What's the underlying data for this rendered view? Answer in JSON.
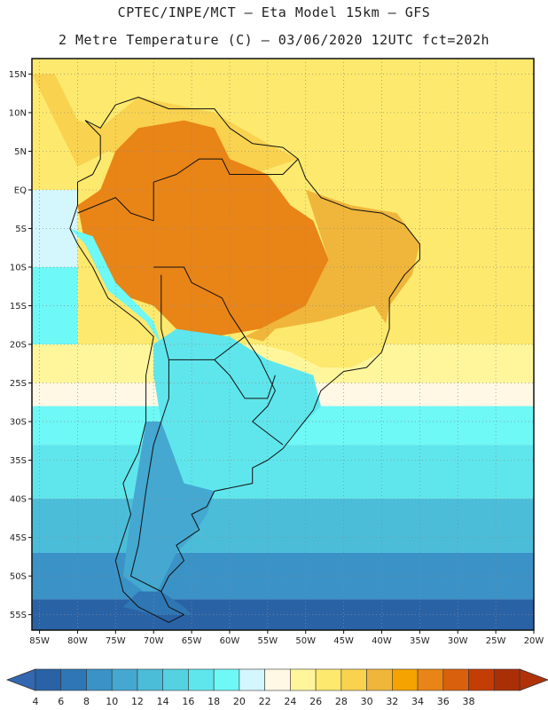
{
  "title": {
    "line1": "CPTEC/INPE/MCT –  Eta Model 15km – GFS",
    "line2": "2 Metre Temperature (C) – 03/06/2020 12UTC fct=202h"
  },
  "map": {
    "lon_range": [
      -86,
      -20
    ],
    "lat_range": [
      -57,
      17
    ],
    "lon_ticks": [
      {
        "value": -85,
        "label": "85W"
      },
      {
        "value": -80,
        "label": "80W"
      },
      {
        "value": -75,
        "label": "75W"
      },
      {
        "value": -70,
        "label": "70W"
      },
      {
        "value": -65,
        "label": "65W"
      },
      {
        "value": -60,
        "label": "60W"
      },
      {
        "value": -55,
        "label": "55W"
      },
      {
        "value": -50,
        "label": "50W"
      },
      {
        "value": -45,
        "label": "45W"
      },
      {
        "value": -40,
        "label": "40W"
      },
      {
        "value": -35,
        "label": "35W"
      },
      {
        "value": -30,
        "label": "30W"
      },
      {
        "value": -25,
        "label": "25W"
      },
      {
        "value": -20,
        "label": "20W"
      }
    ],
    "lat_ticks": [
      {
        "value": 15,
        "label": "15N"
      },
      {
        "value": 10,
        "label": "10N"
      },
      {
        "value": 5,
        "label": "5N"
      },
      {
        "value": 0,
        "label": "EQ"
      },
      {
        "value": -5,
        "label": "5S"
      },
      {
        "value": -10,
        "label": "10S"
      },
      {
        "value": -15,
        "label": "15S"
      },
      {
        "value": -20,
        "label": "20S"
      },
      {
        "value": -25,
        "label": "25S"
      },
      {
        "value": -30,
        "label": "30S"
      },
      {
        "value": -35,
        "label": "35S"
      },
      {
        "value": -40,
        "label": "40S"
      },
      {
        "value": -45,
        "label": "45S"
      },
      {
        "value": -50,
        "label": "50S"
      },
      {
        "value": -55,
        "label": "55S"
      }
    ],
    "ocean_bands": [
      {
        "lat_top": 17,
        "lat_bottom": -20,
        "temp_c": 27
      },
      {
        "lat_top": -20,
        "lat_bottom": -25,
        "temp_c": 25
      },
      {
        "lat_top": -25,
        "lat_bottom": -28,
        "temp_c": 23
      },
      {
        "lat_top": -28,
        "lat_bottom": -33,
        "temp_c": 19
      },
      {
        "lat_top": -33,
        "lat_bottom": -40,
        "temp_c": 17
      },
      {
        "lat_top": -40,
        "lat_bottom": -47,
        "temp_c": 13
      },
      {
        "lat_top": -47,
        "lat_bottom": -53,
        "temp_c": 9
      },
      {
        "lat_top": -53,
        "lat_bottom": -57,
        "temp_c": 5
      }
    ],
    "pacific_bands": [
      {
        "lat_top": 17,
        "lat_bottom": 0,
        "temp_c": 27
      },
      {
        "lat_top": 0,
        "lat_bottom": -10,
        "temp_c": 21
      },
      {
        "lat_top": -10,
        "lat_bottom": -20,
        "temp_c": 19
      }
    ],
    "land_regions": [
      {
        "name": "caribbean-north-coast",
        "temp_c": 29,
        "coords": [
          [
            -86,
            15
          ],
          [
            -83,
            15
          ],
          [
            -80,
            9
          ],
          [
            -77,
            8
          ],
          [
            -72,
            12
          ],
          [
            -62,
            10
          ],
          [
            -55,
            6
          ],
          [
            -51,
            4
          ],
          [
            -60,
            1
          ],
          [
            -70,
            3
          ],
          [
            -76,
            5
          ],
          [
            -80,
            3
          ]
        ]
      },
      {
        "name": "amazon-hot-core",
        "temp_c": 35,
        "coords": [
          [
            -80,
            -2
          ],
          [
            -77,
            0
          ],
          [
            -75,
            5
          ],
          [
            -72,
            8
          ],
          [
            -66,
            9
          ],
          [
            -62,
            8
          ],
          [
            -60,
            4
          ],
          [
            -55,
            2
          ],
          [
            -52,
            -2
          ],
          [
            -49,
            -4
          ],
          [
            -47,
            -9
          ],
          [
            -45,
            -13
          ],
          [
            -50,
            -16
          ],
          [
            -56,
            -18
          ],
          [
            -62,
            -19
          ],
          [
            -67,
            -18
          ],
          [
            -70,
            -15
          ],
          [
            -76,
            -13
          ],
          [
            -79,
            -7
          ]
        ]
      },
      {
        "name": "brazil-plateau",
        "temp_c": 31,
        "coords": [
          [
            -50,
            0
          ],
          [
            -44,
            -2
          ],
          [
            -38,
            -3
          ],
          [
            -35,
            -7
          ],
          [
            -36,
            -11
          ],
          [
            -39,
            -15
          ],
          [
            -40,
            -20
          ],
          [
            -48,
            -21
          ],
          [
            -54,
            -20
          ],
          [
            -58,
            -19
          ],
          [
            -50,
            -15
          ],
          [
            -47,
            -9
          ]
        ]
      },
      {
        "name": "brazil-coast-warm",
        "temp_c": 27,
        "coords": [
          [
            -41,
            -15
          ],
          [
            -39,
            -18
          ],
          [
            -40,
            -21
          ],
          [
            -44,
            -23
          ],
          [
            -48,
            -23
          ],
          [
            -52,
            -21
          ],
          [
            -56,
            -20
          ],
          [
            -54,
            -18
          ],
          [
            -48,
            -17
          ]
        ]
      },
      {
        "name": "andes-cool-strip",
        "temp_c": 19,
        "coords": [
          [
            -81,
            -5
          ],
          [
            -79,
            -7
          ],
          [
            -76,
            -13
          ],
          [
            -71,
            -17
          ],
          [
            -69,
            -20
          ],
          [
            -70,
            -17
          ],
          [
            -75,
            -12
          ],
          [
            -78,
            -6
          ]
        ]
      },
      {
        "name": "southern-cone-mild",
        "temp_c": 17,
        "coords": [
          [
            -70,
            -20
          ],
          [
            -67,
            -18
          ],
          [
            -60,
            -19
          ],
          [
            -55,
            -22
          ],
          [
            -49,
            -24
          ],
          [
            -48,
            -28
          ],
          [
            -52,
            -32
          ],
          [
            -54,
            -35
          ],
          [
            -58,
            -36
          ],
          [
            -62,
            -39
          ],
          [
            -66,
            -38
          ],
          [
            -69,
            -30
          ],
          [
            -70,
            -24
          ]
        ]
      },
      {
        "name": "patagonia-cool",
        "temp_c": 11,
        "coords": [
          [
            -71,
            -30
          ],
          [
            -69,
            -30
          ],
          [
            -66,
            -38
          ],
          [
            -62,
            -39
          ],
          [
            -63,
            -42
          ],
          [
            -65,
            -45
          ],
          [
            -67,
            -47
          ],
          [
            -69,
            -51
          ],
          [
            -70,
            -53
          ],
          [
            -74,
            -50
          ],
          [
            -73,
            -42
          ],
          [
            -72,
            -36
          ]
        ]
      },
      {
        "name": "tierra-del-fuego",
        "temp_c": 7,
        "coords": [
          [
            -72,
            -52
          ],
          [
            -69,
            -52
          ],
          [
            -66,
            -54
          ],
          [
            -65,
            -55
          ],
          [
            -70,
            -55
          ],
          [
            -74,
            -54
          ]
        ]
      }
    ],
    "countries": [
      {
        "name": "coastline",
        "coords": [
          [
            -79,
            9
          ],
          [
            -77,
            8
          ],
          [
            -75,
            11
          ],
          [
            -72,
            12
          ],
          [
            -68,
            10.5
          ],
          [
            -62,
            10.5
          ],
          [
            -60,
            8
          ],
          [
            -57,
            6
          ],
          [
            -53,
            5.5
          ],
          [
            -51,
            4
          ],
          [
            -50,
            1.5
          ],
          [
            -48,
            -1
          ],
          [
            -44,
            -2.5
          ],
          [
            -40,
            -3
          ],
          [
            -37,
            -4.5
          ],
          [
            -35,
            -7
          ],
          [
            -35,
            -9
          ],
          [
            -37,
            -11
          ],
          [
            -39,
            -14
          ],
          [
            -39,
            -18
          ],
          [
            -40,
            -21
          ],
          [
            -42,
            -23
          ],
          [
            -45,
            -23.5
          ],
          [
            -48,
            -26
          ],
          [
            -49,
            -28.5
          ],
          [
            -51,
            -31
          ],
          [
            -53,
            -33.5
          ],
          [
            -55,
            -35
          ],
          [
            -57,
            -36
          ],
          [
            -57,
            -38
          ],
          [
            -62,
            -39
          ],
          [
            -63,
            -41
          ],
          [
            -65,
            -42
          ],
          [
            -64,
            -44
          ],
          [
            -67,
            -46
          ],
          [
            -66,
            -48
          ],
          [
            -68,
            -50
          ],
          [
            -69,
            -52
          ],
          [
            -68,
            -54
          ],
          [
            -66,
            -55
          ],
          [
            -68,
            -56
          ],
          [
            -72,
            -54
          ],
          [
            -74,
            -52
          ],
          [
            -75,
            -48
          ],
          [
            -74,
            -45
          ],
          [
            -73,
            -42
          ],
          [
            -74,
            -38
          ],
          [
            -72,
            -34
          ],
          [
            -71,
            -30
          ],
          [
            -71,
            -24
          ],
          [
            -70,
            -19
          ],
          [
            -72,
            -17
          ],
          [
            -76,
            -14
          ],
          [
            -78,
            -10
          ],
          [
            -80,
            -7
          ],
          [
            -81,
            -5
          ],
          [
            -80,
            -2
          ],
          [
            -80,
            1
          ],
          [
            -78,
            2
          ],
          [
            -77,
            4
          ],
          [
            -77,
            7
          ],
          [
            -79,
            9
          ]
        ]
      },
      {
        "name": "brazil-west-border",
        "coords": [
          [
            -70,
            -10
          ],
          [
            -66,
            -10
          ],
          [
            -65,
            -12
          ],
          [
            -61,
            -14
          ],
          [
            -60,
            -16
          ],
          [
            -58,
            -19
          ],
          [
            -56,
            -22
          ],
          [
            -55,
            -24
          ],
          [
            -54,
            -26
          ],
          [
            -55,
            -28
          ],
          [
            -57,
            -30
          ],
          [
            -53,
            -33
          ]
        ]
      },
      {
        "name": "brazil-north-border",
        "coords": [
          [
            -70,
            -4
          ],
          [
            -70,
            1
          ],
          [
            -67,
            2
          ],
          [
            -64,
            4
          ],
          [
            -61,
            4
          ],
          [
            -60,
            2
          ],
          [
            -56,
            2
          ],
          [
            -53,
            2
          ],
          [
            -51,
            4
          ]
        ]
      },
      {
        "name": "peru-colombia-border",
        "coords": [
          [
            -80,
            -3
          ],
          [
            -75,
            -1
          ],
          [
            -73,
            -3
          ],
          [
            -70,
            -4
          ]
        ]
      },
      {
        "name": "bolivia-border",
        "coords": [
          [
            -69,
            -11
          ],
          [
            -69,
            -15
          ],
          [
            -69,
            -18
          ],
          [
            -68,
            -22
          ],
          [
            -62,
            -22
          ],
          [
            -58,
            -19
          ]
        ]
      },
      {
        "name": "chile-argentina-border",
        "coords": [
          [
            -68,
            -22
          ],
          [
            -68,
            -27
          ],
          [
            -70,
            -33
          ],
          [
            -71,
            -39
          ],
          [
            -72,
            -46
          ],
          [
            -73,
            -50
          ],
          [
            -69,
            -52
          ]
        ]
      },
      {
        "name": "paraguay-border",
        "coords": [
          [
            -62,
            -22
          ],
          [
            -60,
            -24
          ],
          [
            -58,
            -27
          ],
          [
            -55,
            -27
          ],
          [
            -54,
            -24
          ]
        ]
      }
    ]
  },
  "colorbar": {
    "labels": [
      "4",
      "6",
      "8",
      "10",
      "12",
      "14",
      "16",
      "18",
      "20",
      "22",
      "24",
      "26",
      "28",
      "30",
      "32",
      "34",
      "36",
      "38"
    ],
    "colors": [
      "#2a62a6",
      "#2f77b4",
      "#3b92c6",
      "#44a8d1",
      "#4bbdd9",
      "#54d2e2",
      "#5fe6ec",
      "#6ef8f6",
      "#d4f6fd",
      "#fff8e4",
      "#fff69c",
      "#fde96d",
      "#f9d24f",
      "#efb63b",
      "#f5a300",
      "#e98417",
      "#d9600d",
      "#c43d04",
      "#aa2f06"
    ],
    "below_color": "#3367b0",
    "above_color": "#b13209"
  }
}
